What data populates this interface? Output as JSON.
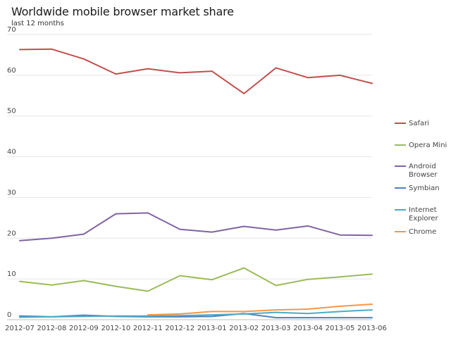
{
  "chart_data": {
    "type": "line",
    "title": "Worldwide mobile browser market share",
    "subtitle": "last 12 months",
    "xlabel": "",
    "ylabel": "",
    "categories": [
      "2012-07",
      "2012-08",
      "2012-09",
      "2012-10",
      "2012-11",
      "2012-12",
      "2013-01",
      "2013-02",
      "2013-03",
      "2013-04",
      "2013-05",
      "2013-06"
    ],
    "ylim": [
      0,
      70
    ],
    "yticks": [
      0,
      10,
      20,
      30,
      40,
      50,
      60,
      70
    ],
    "grid": "horizontal",
    "legend": "right",
    "series": [
      {
        "name": "Safari",
        "color": "#c0504d",
        "values": [
          66.3,
          66.4,
          64.0,
          60.3,
          61.6,
          60.6,
          61.0,
          55.5,
          61.8,
          59.4,
          60.0,
          58.0
        ]
      },
      {
        "name": "Opera Mini",
        "color": "#9bbb59",
        "values": [
          9.4,
          8.5,
          9.6,
          8.2,
          7.0,
          10.8,
          9.8,
          12.7,
          8.4,
          9.9,
          10.5,
          11.2
        ]
      },
      {
        "name": "Android Browser",
        "legend_lines": [
          "Android",
          "Browser"
        ],
        "color": "#8064a2",
        "values": [
          19.4,
          20.0,
          21.0,
          26.0,
          26.2,
          22.2,
          21.5,
          22.9,
          22.0,
          23.0,
          20.8,
          20.7
        ]
      },
      {
        "name": "Symbian",
        "color": "#4f81bd",
        "values": [
          0.9,
          0.7,
          1.1,
          0.8,
          0.7,
          0.7,
          0.8,
          1.5,
          0.5,
          0.5,
          0.5,
          0.5
        ]
      },
      {
        "name": "Internet Explorer",
        "legend_lines": [
          "Internet",
          "Explorer"
        ],
        "color": "#4bacc6",
        "values": [
          0.6,
          0.7,
          0.8,
          0.9,
          0.9,
          1.0,
          1.2,
          1.4,
          1.8,
          1.5,
          2.0,
          2.4
        ]
      },
      {
        "name": "Chrome",
        "color": "#f79646",
        "values": [
          null,
          null,
          null,
          null,
          1.2,
          1.4,
          2.0,
          2.0,
          2.4,
          2.6,
          3.3,
          3.8
        ]
      }
    ]
  }
}
